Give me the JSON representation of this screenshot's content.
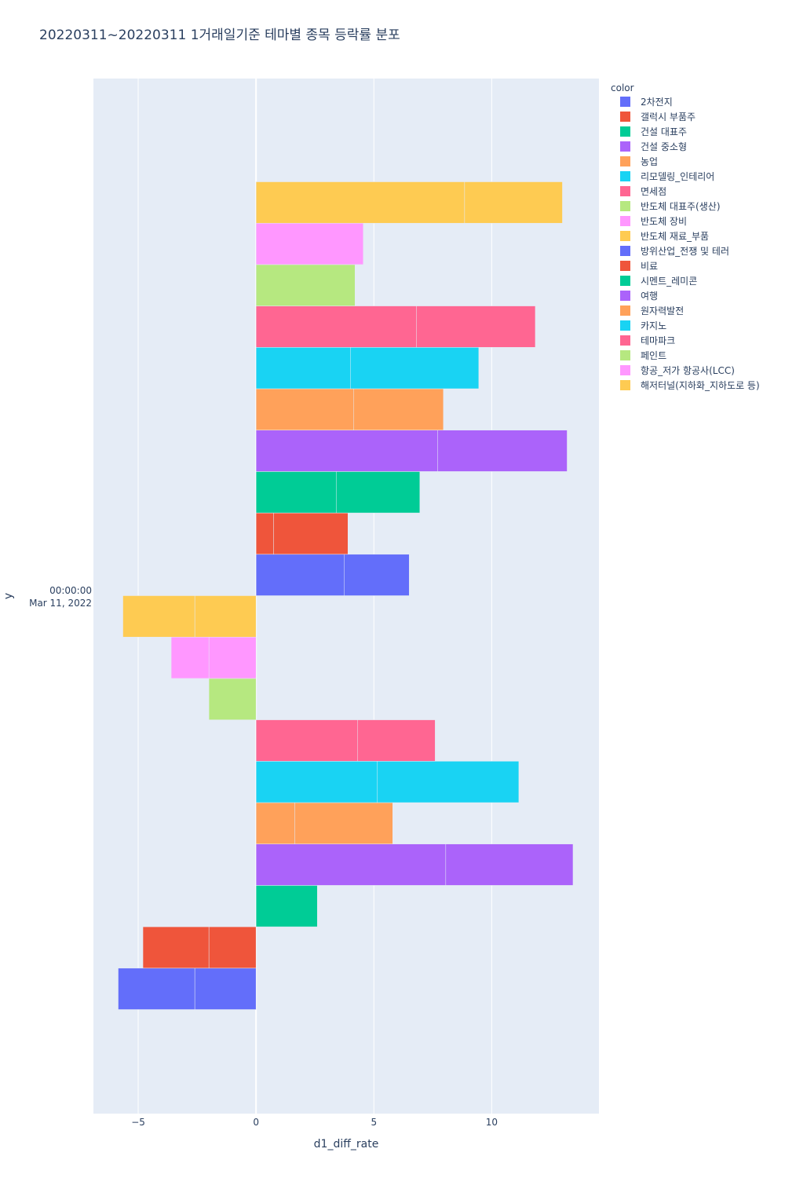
{
  "chart_data": {
    "type": "bar",
    "orientation": "horizontal",
    "barmode": "relative",
    "title": "20220311~20220311 1거래일기준 테마별 종목 등락률 분포",
    "xlabel": "d1_diff_rate",
    "ylabel": "y",
    "y_tick_label": [
      "00:00:00",
      "Mar 11, 2022"
    ],
    "xlim": [
      -6.9,
      14.55
    ],
    "x_ticks": [
      -5,
      0,
      5,
      10
    ],
    "x_tick_labels": [
      "−5",
      "0",
      "5",
      "10"
    ],
    "grid": true,
    "legend": {
      "title": "color",
      "position": "top-right"
    },
    "series": [
      {
        "name": "2차전지",
        "color": "#636efa",
        "segments": [
          -2.6,
          -3.25
        ]
      },
      {
        "name": "갤럭시 부품주",
        "color": "#EF553B",
        "segments": [
          -2.0,
          -2.8
        ]
      },
      {
        "name": "건설 대표주",
        "color": "#00cc96",
        "segments": [
          2.6
        ]
      },
      {
        "name": "건설 중소형",
        "color": "#ab63fa",
        "segments": [
          8.05,
          5.4
        ]
      },
      {
        "name": "농업",
        "color": "#FFA15A",
        "segments": [
          1.65,
          4.15
        ]
      },
      {
        "name": "리모델링_인테리어",
        "color": "#19d3f3",
        "segments": [
          5.15,
          6.0
        ]
      },
      {
        "name": "면세점",
        "color": "#FF6692",
        "segments": [
          4.3,
          3.3
        ]
      },
      {
        "name": "반도체 대표주(생산)",
        "color": "#B6E880",
        "segments": [
          -2.0
        ]
      },
      {
        "name": "반도체 장비",
        "color": "#FF97FF",
        "segments": [
          -2.0,
          -1.6
        ]
      },
      {
        "name": "반도체 재료_부품",
        "color": "#FECB52",
        "segments": [
          -2.6,
          -3.05
        ]
      },
      {
        "name": "방위산업_전쟁 및 테러",
        "color": "#636efa",
        "segments": [
          3.75,
          2.75
        ]
      },
      {
        "name": "비료",
        "color": "#EF553B",
        "segments": [
          0.75,
          3.15
        ]
      },
      {
        "name": "시멘트_레미콘",
        "color": "#00cc96",
        "segments": [
          3.4,
          3.55
        ]
      },
      {
        "name": "여행",
        "color": "#ab63fa",
        "segments": [
          7.7,
          5.5
        ]
      },
      {
        "name": "원자력발전",
        "color": "#FFA15A",
        "segments": [
          4.15,
          3.8
        ]
      },
      {
        "name": "카지노",
        "color": "#19d3f3",
        "segments": [
          4.0,
          5.45
        ]
      },
      {
        "name": "테마파크",
        "color": "#FF6692",
        "segments": [
          6.8,
          5.05
        ]
      },
      {
        "name": "페인트",
        "color": "#B6E880",
        "segments": [
          4.2
        ]
      },
      {
        "name": "항공_저가 항공사(LCC)",
        "color": "#FF97FF",
        "segments": [
          4.55
        ]
      },
      {
        "name": "해저터널(지하화_지하도로 등)",
        "color": "#FECB52",
        "segments": [
          8.85,
          4.15
        ]
      }
    ]
  }
}
